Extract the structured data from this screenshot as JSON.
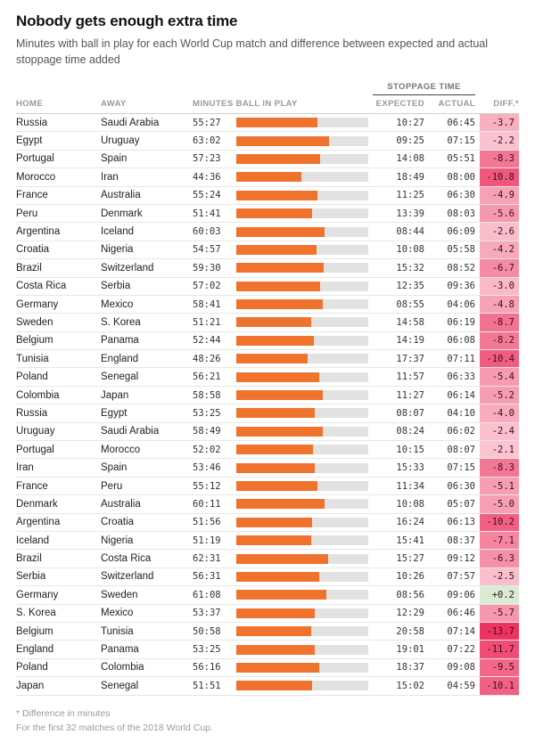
{
  "header": {
    "title": "Nobody gets enough extra time",
    "subtitle": "Minutes with ball in play for each World Cup match and difference between expected and actual stoppage time added"
  },
  "table": {
    "group_header": "STOPPAGE TIME",
    "columns": {
      "home": "HOME",
      "away": "AWAY",
      "minutes": "MINUTES BALL IN PLAY",
      "expected": "EXPECTED",
      "actual": "ACTUAL",
      "diff": "DIFF.*"
    }
  },
  "footnotes": [
    "* Difference in minutes",
    "For the first 32 matches of the 2018 World Cup."
  ],
  "chart_data": {
    "type": "table",
    "title": "Nobody gets enough extra time",
    "subtitle": "Minutes with ball in play for each World Cup match and difference between expected and actual stoppage time added",
    "columns": [
      "HOME",
      "AWAY",
      "MINUTES BALL IN PLAY",
      "EXPECTED",
      "ACTUAL",
      "DIFF.*"
    ],
    "bar_column": "minutes_ball_in_play",
    "bar_scale": {
      "min": 0,
      "max": 90,
      "unit": "minutes"
    },
    "colors": {
      "bar": "#f0732d",
      "bar_track": "#e2e2e2",
      "diff_negative_light": "#fcdee5",
      "diff_negative_dark": "#ee2f5e",
      "positive": "#d9ecd3"
    },
    "rows": [
      {
        "home": "Russia",
        "away": "Saudi Arabia",
        "minutes_ball_in_play": "55:27",
        "expected": "10:27",
        "actual": "06:45",
        "diff": "-3.7"
      },
      {
        "home": "Egypt",
        "away": "Uruguay",
        "minutes_ball_in_play": "63:02",
        "expected": "09:25",
        "actual": "07:15",
        "diff": "-2.2"
      },
      {
        "home": "Portugal",
        "away": "Spain",
        "minutes_ball_in_play": "57:23",
        "expected": "14:08",
        "actual": "05:51",
        "diff": "-8.3"
      },
      {
        "home": "Morocco",
        "away": "Iran",
        "minutes_ball_in_play": "44:36",
        "expected": "18:49",
        "actual": "08:00",
        "diff": "-10.8"
      },
      {
        "home": "France",
        "away": "Australia",
        "minutes_ball_in_play": "55:24",
        "expected": "11:25",
        "actual": "06:30",
        "diff": "-4.9"
      },
      {
        "home": "Peru",
        "away": "Denmark",
        "minutes_ball_in_play": "51:41",
        "expected": "13:39",
        "actual": "08:03",
        "diff": "-5.6"
      },
      {
        "home": "Argentina",
        "away": "Iceland",
        "minutes_ball_in_play": "60:03",
        "expected": "08:44",
        "actual": "06:09",
        "diff": "-2.6"
      },
      {
        "home": "Croatia",
        "away": "Nigeria",
        "minutes_ball_in_play": "54:57",
        "expected": "10:08",
        "actual": "05:58",
        "diff": "-4.2"
      },
      {
        "home": "Brazil",
        "away": "Switzerland",
        "minutes_ball_in_play": "59:30",
        "expected": "15:32",
        "actual": "08:52",
        "diff": "-6.7"
      },
      {
        "home": "Costa Rica",
        "away": "Serbia",
        "minutes_ball_in_play": "57:02",
        "expected": "12:35",
        "actual": "09:36",
        "diff": "-3.0"
      },
      {
        "home": "Germany",
        "away": "Mexico",
        "minutes_ball_in_play": "58:41",
        "expected": "08:55",
        "actual": "04:06",
        "diff": "-4.8"
      },
      {
        "home": "Sweden",
        "away": "S. Korea",
        "minutes_ball_in_play": "51:21",
        "expected": "14:58",
        "actual": "06:19",
        "diff": "-8.7"
      },
      {
        "home": "Belgium",
        "away": "Panama",
        "minutes_ball_in_play": "52:44",
        "expected": "14:19",
        "actual": "06:08",
        "diff": "-8.2"
      },
      {
        "home": "Tunisia",
        "away": "England",
        "minutes_ball_in_play": "48:26",
        "expected": "17:37",
        "actual": "07:11",
        "diff": "-10.4"
      },
      {
        "home": "Poland",
        "away": "Senegal",
        "minutes_ball_in_play": "56:21",
        "expected": "11:57",
        "actual": "06:33",
        "diff": "-5.4"
      },
      {
        "home": "Colombia",
        "away": "Japan",
        "minutes_ball_in_play": "58:58",
        "expected": "11:27",
        "actual": "06:14",
        "diff": "-5.2"
      },
      {
        "home": "Russia",
        "away": "Egypt",
        "minutes_ball_in_play": "53:25",
        "expected": "08:07",
        "actual": "04:10",
        "diff": "-4.0"
      },
      {
        "home": "Uruguay",
        "away": "Saudi Arabia",
        "minutes_ball_in_play": "58:49",
        "expected": "08:24",
        "actual": "06:02",
        "diff": "-2.4"
      },
      {
        "home": "Portugal",
        "away": "Morocco",
        "minutes_ball_in_play": "52:02",
        "expected": "10:15",
        "actual": "08:07",
        "diff": "-2.1"
      },
      {
        "home": "Iran",
        "away": "Spain",
        "minutes_ball_in_play": "53:46",
        "expected": "15:33",
        "actual": "07:15",
        "diff": "-8.3"
      },
      {
        "home": "France",
        "away": "Peru",
        "minutes_ball_in_play": "55:12",
        "expected": "11:34",
        "actual": "06:30",
        "diff": "-5.1"
      },
      {
        "home": "Denmark",
        "away": "Australia",
        "minutes_ball_in_play": "60:11",
        "expected": "10:08",
        "actual": "05:07",
        "diff": "-5.0"
      },
      {
        "home": "Argentina",
        "away": "Croatia",
        "minutes_ball_in_play": "51:56",
        "expected": "16:24",
        "actual": "06:13",
        "diff": "-10.2"
      },
      {
        "home": "Iceland",
        "away": "Nigeria",
        "minutes_ball_in_play": "51:19",
        "expected": "15:41",
        "actual": "08:37",
        "diff": "-7.1"
      },
      {
        "home": "Brazil",
        "away": "Costa Rica",
        "minutes_ball_in_play": "62:31",
        "expected": "15:27",
        "actual": "09:12",
        "diff": "-6.3"
      },
      {
        "home": "Serbia",
        "away": "Switzerland",
        "minutes_ball_in_play": "56:31",
        "expected": "10:26",
        "actual": "07:57",
        "diff": "-2.5"
      },
      {
        "home": "Germany",
        "away": "Sweden",
        "minutes_ball_in_play": "61:08",
        "expected": "08:56",
        "actual": "09:06",
        "diff": "+0.2"
      },
      {
        "home": "S. Korea",
        "away": "Mexico",
        "minutes_ball_in_play": "53:37",
        "expected": "12:29",
        "actual": "06:46",
        "diff": "-5.7"
      },
      {
        "home": "Belgium",
        "away": "Tunisia",
        "minutes_ball_in_play": "50:58",
        "expected": "20:58",
        "actual": "07:14",
        "diff": "-13.7"
      },
      {
        "home": "England",
        "away": "Panama",
        "minutes_ball_in_play": "53:25",
        "expected": "19:01",
        "actual": "07:22",
        "diff": "-11.7"
      },
      {
        "home": "Poland",
        "away": "Colombia",
        "minutes_ball_in_play": "56:16",
        "expected": "18:37",
        "actual": "09:08",
        "diff": "-9.5"
      },
      {
        "home": "Japan",
        "away": "Senegal",
        "minutes_ball_in_play": "51:51",
        "expected": "15:02",
        "actual": "04:59",
        "diff": "-10.1"
      }
    ]
  }
}
